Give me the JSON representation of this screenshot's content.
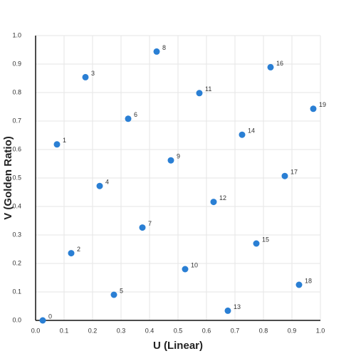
{
  "chart_data": {
    "type": "scatter",
    "x_label": "U (Linear)",
    "y_label": "V (Golden Ratio)",
    "x": [
      0.025,
      0.075,
      0.125,
      0.175,
      0.225,
      0.275,
      0.325,
      0.375,
      0.425,
      0.475,
      0.525,
      0.575,
      0.625,
      0.675,
      0.725,
      0.775,
      0.825,
      0.875,
      0.925,
      0.975
    ],
    "values": [
      0,
      0.618,
      0.236,
      0.854,
      0.472,
      0.09,
      0.708,
      0.326,
      0.944,
      0.562,
      0.18,
      0.798,
      0.416,
      0.034,
      0.652,
      0.27,
      0.889,
      0.507,
      0.125,
      0.743
    ],
    "point_labels": [
      "0",
      "1",
      "2",
      "3",
      "4",
      "5",
      "6",
      "7",
      "8",
      "9",
      "10",
      "11",
      "12",
      "13",
      "14",
      "15",
      "16",
      "17",
      "18",
      "19"
    ],
    "color": "#2a7fd4",
    "xlim": [
      0,
      1
    ],
    "ylim": [
      0,
      1
    ],
    "xticks": [
      {
        "value": 0,
        "label": "0.0"
      },
      0.1,
      0.2,
      0.3,
      0.4,
      0.5,
      0.6,
      0.7,
      0.8,
      0.9,
      {
        "value": 1,
        "label": "1.0"
      }
    ],
    "yticks": [
      {
        "value": 0,
        "label": "0.0"
      },
      0.1,
      0.2,
      0.3,
      0.4,
      0.5,
      0.6,
      0.7,
      0.8,
      0.9,
      {
        "value": 1,
        "label": "1.0"
      }
    ],
    "grid": true
  }
}
